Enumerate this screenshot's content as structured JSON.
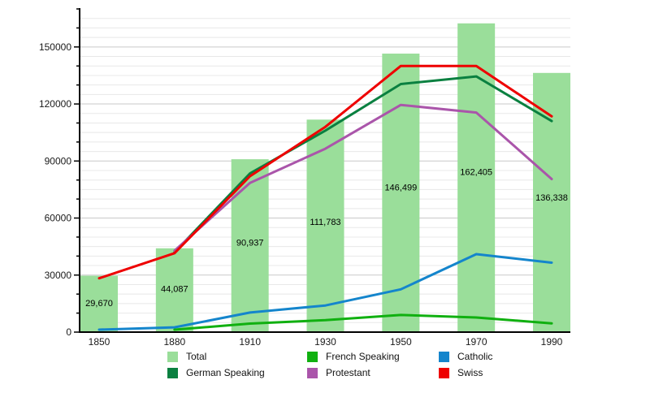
{
  "chart_data": {
    "type": "bar",
    "title": "",
    "categories": [
      "1850",
      "1880",
      "1910",
      "1930",
      "1950",
      "1970",
      "1990"
    ],
    "bars": {
      "name": "Total",
      "color": "#9ade9a",
      "values": [
        29670,
        44087,
        90937,
        111783,
        146499,
        162405,
        136338
      ],
      "labels": [
        "29,670",
        "44,087",
        "90,937",
        "111,783",
        "146,499",
        "162,405",
        "136,338"
      ]
    },
    "series": [
      {
        "name": "German Speaking",
        "type": "line",
        "color": "#0a8040",
        "values": [
          null,
          42000,
          83500,
          106000,
          130500,
          134500,
          111000
        ]
      },
      {
        "name": "French Speaking",
        "type": "line",
        "color": "#10b010",
        "values": [
          null,
          1300,
          4500,
          6300,
          9000,
          7700,
          4600
        ]
      },
      {
        "name": "Protestant",
        "type": "line",
        "color": "#aa55aa",
        "values": [
          null,
          42800,
          78500,
          96500,
          119500,
          115500,
          80500
        ]
      },
      {
        "name": "Catholic",
        "type": "line",
        "color": "#1485cc",
        "values": [
          1300,
          2500,
          10300,
          14000,
          22500,
          41000,
          36500
        ]
      },
      {
        "name": "Swiss",
        "type": "line",
        "color": "#ee0000",
        "values": [
          28300,
          41500,
          82000,
          108000,
          140000,
          140000,
          113500
        ]
      }
    ],
    "xlabel": "",
    "ylabel": "",
    "ylim": [
      0,
      170000
    ],
    "yticks": [
      0,
      30000,
      60000,
      90000,
      120000,
      150000
    ],
    "ytick_labels": [
      "0",
      "30000",
      "60000",
      "90000",
      "120000",
      "150000"
    ],
    "grid": {
      "on": true,
      "minor_step": 5000,
      "major_step": 30000
    },
    "legend_position": "bottom"
  },
  "legend": {
    "items": [
      {
        "label": "Total",
        "color": "#9ade9a"
      },
      {
        "label": "German Speaking",
        "color": "#0a8040"
      },
      {
        "label": "French Speaking",
        "color": "#10b010"
      },
      {
        "label": "Protestant",
        "color": "#aa55aa"
      },
      {
        "label": "Catholic",
        "color": "#1485cc"
      },
      {
        "label": "Swiss",
        "color": "#ee0000"
      }
    ]
  },
  "colors": {
    "axis": "#000000",
    "grid_minor": "#e8e8e8",
    "grid_major": "#c9c9c9",
    "tick_label": "#1a1a1a",
    "bar_label": "#000000",
    "background": "#ffffff"
  }
}
